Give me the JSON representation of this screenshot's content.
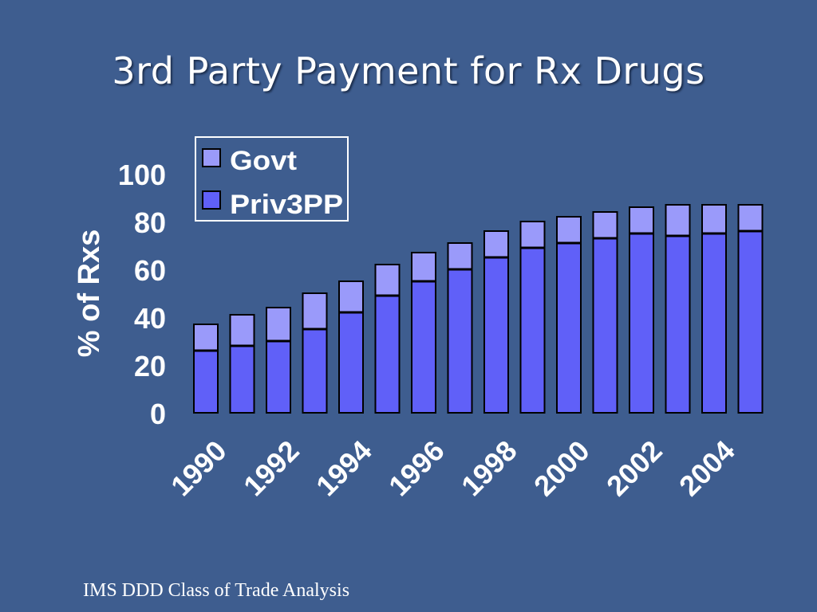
{
  "slide": {
    "title": "3rd Party Payment for Rx Drugs",
    "footer": "IMS DDD Class of Trade Analysis",
    "colors": {
      "background": "#3e5d8f",
      "govt": "#9a9afa",
      "priv3pp": "#6060f8",
      "outline": "#000000",
      "text": "#ffffff"
    }
  },
  "chart_data": {
    "type": "bar",
    "stacked": true,
    "title": "",
    "ylabel": "% of Rxs",
    "xlabel": "",
    "ylim": [
      0,
      100
    ],
    "yticks": [
      "0",
      "20",
      "40",
      "60",
      "80",
      "100"
    ],
    "xtick_labels": [
      "1990",
      "1992",
      "1994",
      "1996",
      "1998",
      "2000",
      "2002",
      "2004"
    ],
    "categories": [
      "1990",
      "1991",
      "1992",
      "1993",
      "1994",
      "1995",
      "1996",
      "1997",
      "1998",
      "1999",
      "2000",
      "2001",
      "2002",
      "2003",
      "2004",
      "2005"
    ],
    "series": [
      {
        "name": "Priv3PP",
        "values": [
          26,
          28,
          30,
          35,
          42,
          49,
          55,
          60,
          65,
          69,
          71,
          73,
          75,
          74,
          75,
          76
        ]
      },
      {
        "name": "Govt",
        "values": [
          11,
          13,
          14,
          15,
          13,
          13,
          12,
          11,
          11,
          11,
          11,
          11,
          11,
          13,
          12,
          11
        ]
      }
    ],
    "legend": {
      "placement": "top-left",
      "entries": [
        "Govt",
        "Priv3PP"
      ]
    },
    "grid": false
  }
}
